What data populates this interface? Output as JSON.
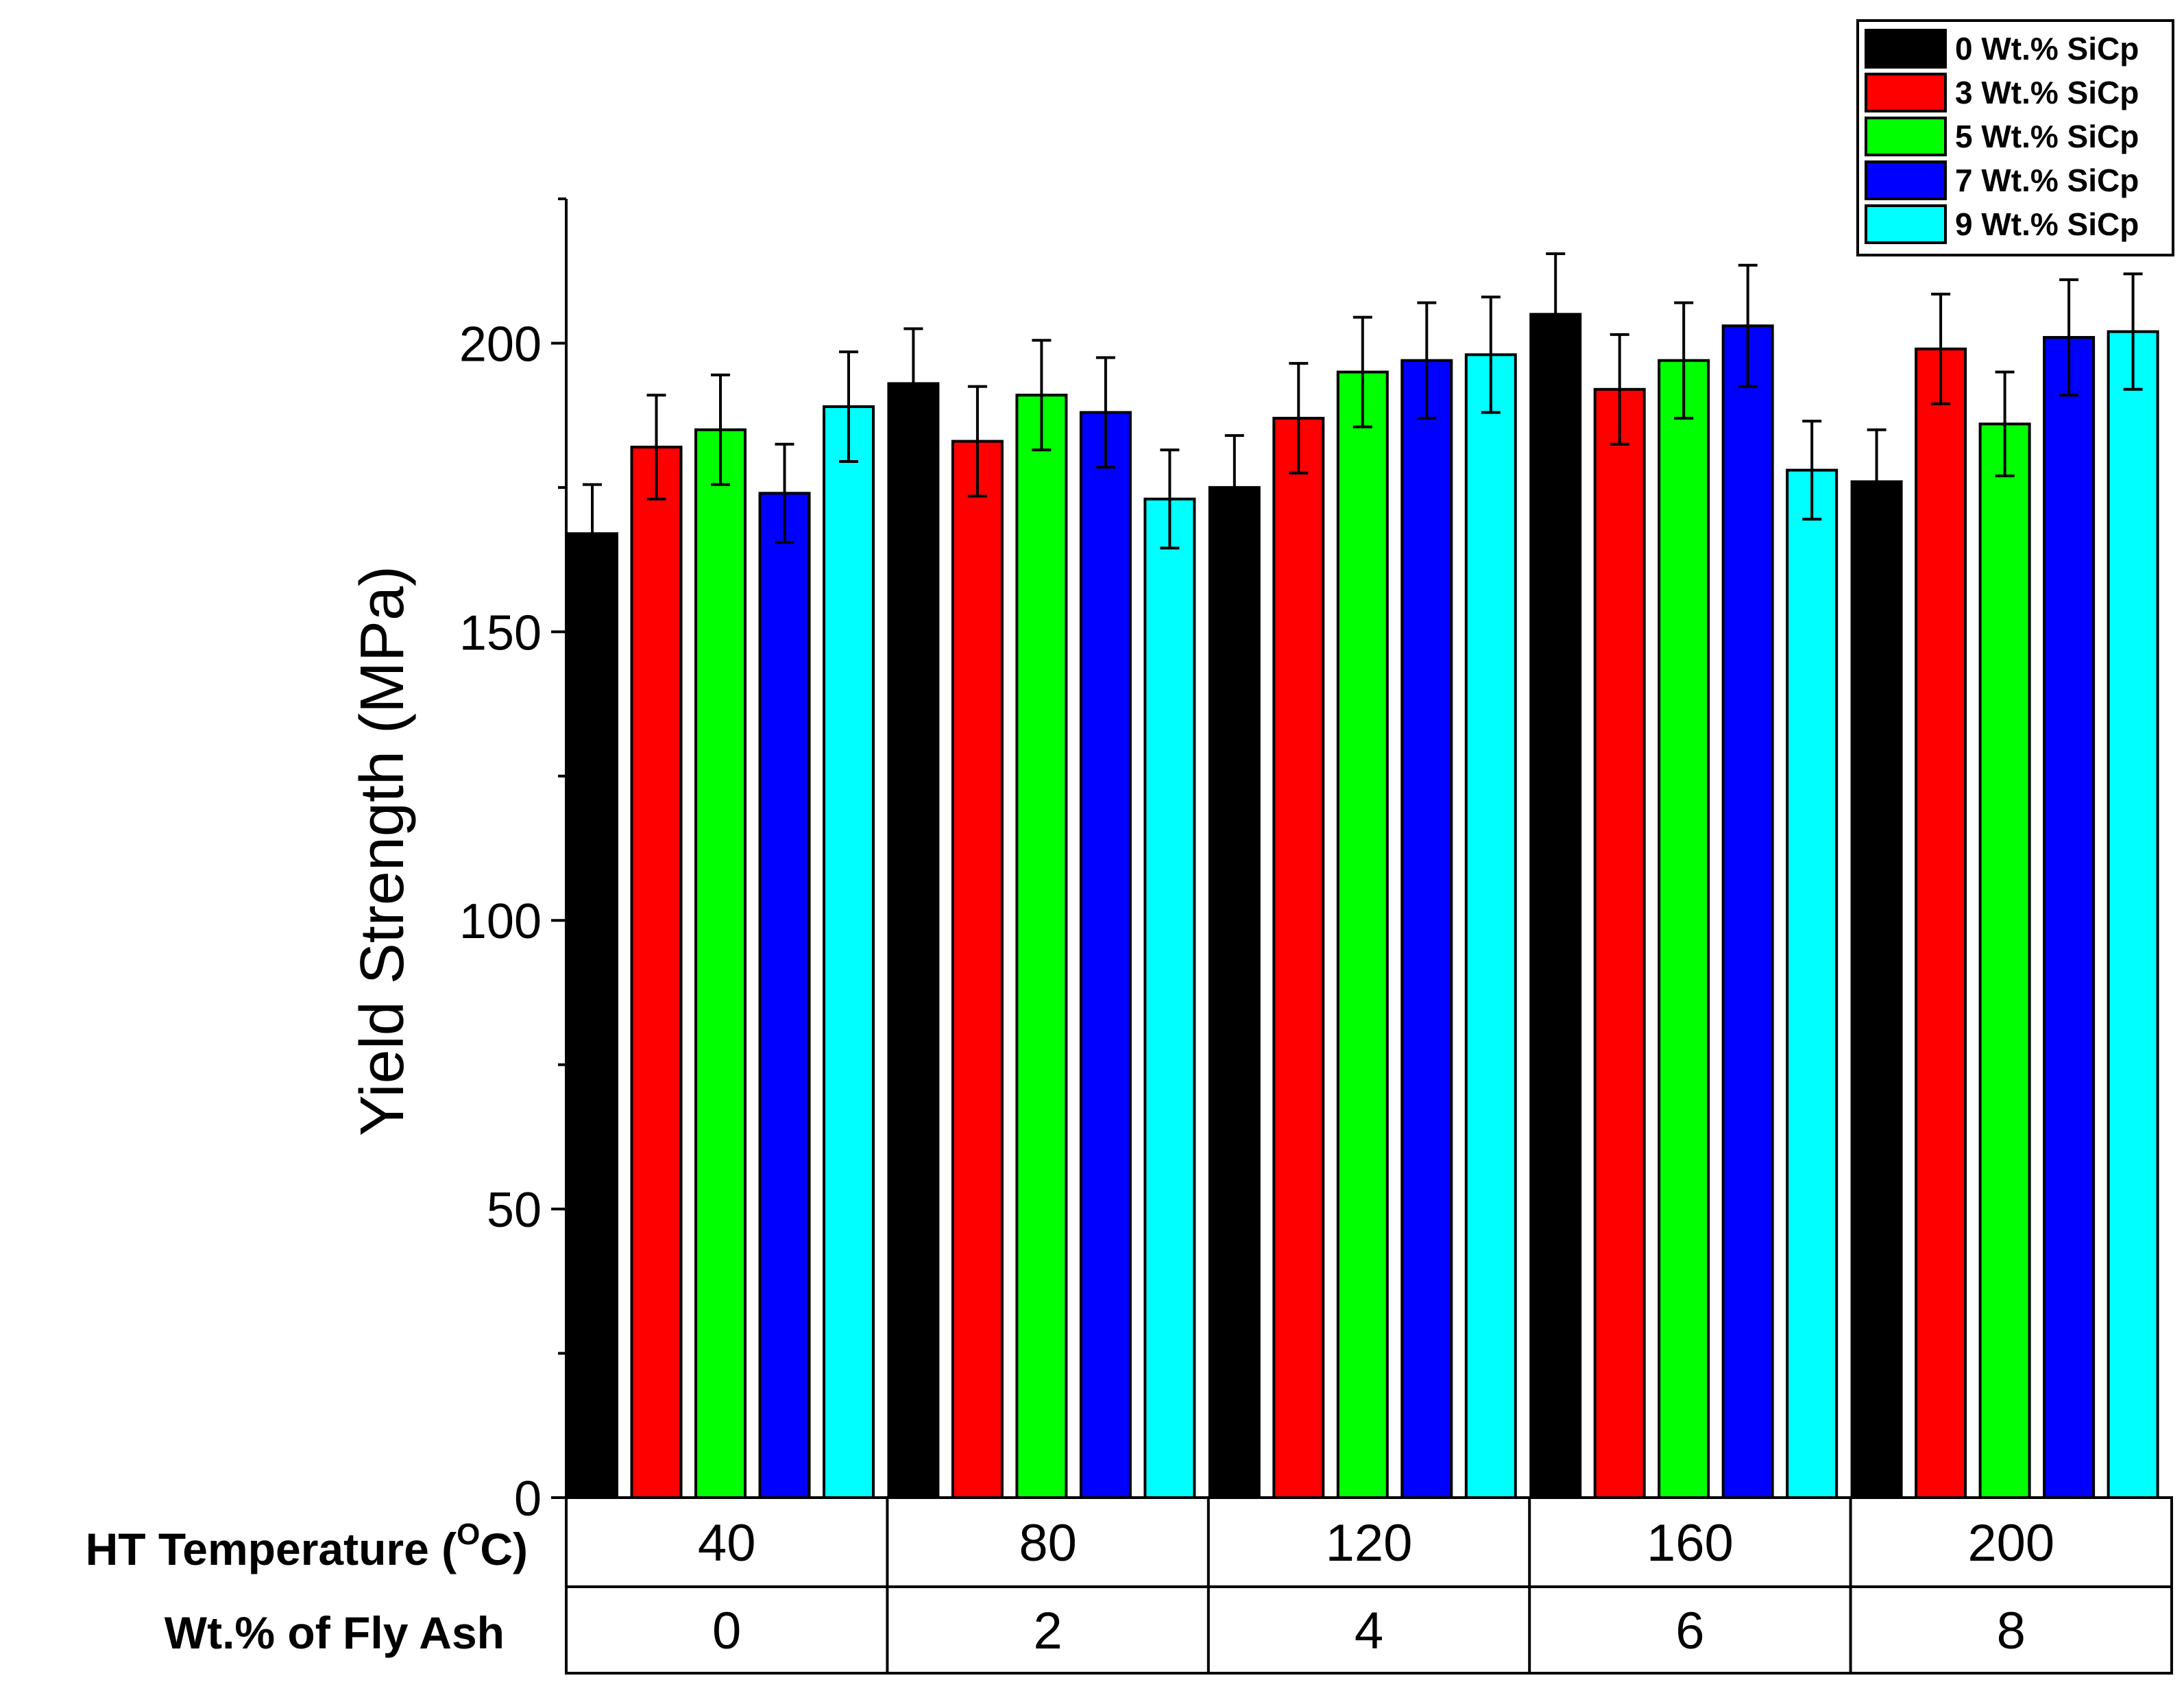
{
  "chart_data": {
    "type": "bar",
    "title": "",
    "ylabel": "Yield Strength (MPa)",
    "ylim": [
      0,
      225
    ],
    "yticks": [
      0,
      50,
      100,
      150,
      200
    ],
    "row_labels": {
      "temperature": {
        "prefix": "HT Temperature (",
        "sup": "O",
        "suffix": "C)"
      },
      "fly_ash": "Wt.% of Fly Ash"
    },
    "categories": [
      "40",
      "80",
      "120",
      "160",
      "200"
    ],
    "fly_ash": [
      "0",
      "2",
      "4",
      "6",
      "8"
    ],
    "series": [
      {
        "name": "0 Wt.% SiCp",
        "color": "#000000",
        "values": [
          167,
          193,
          175,
          205,
          176
        ],
        "errors": [
          8.5,
          9.5,
          9,
          10.5,
          9
        ]
      },
      {
        "name": "3 Wt.% SiCp",
        "color": "#ff0000",
        "values": [
          182,
          183,
          187,
          192,
          199
        ],
        "errors": [
          9,
          9.5,
          9.5,
          9.5,
          9.5
        ]
      },
      {
        "name": "5 Wt.% SiCp",
        "color": "#00ff00",
        "values": [
          185,
          191,
          195,
          197,
          186
        ],
        "errors": [
          9.5,
          9.5,
          9.5,
          10,
          9
        ]
      },
      {
        "name": "7 Wt.% SiCp",
        "color": "#0000ff",
        "values": [
          174,
          188,
          197,
          203,
          201
        ],
        "errors": [
          8.5,
          9.5,
          10,
          10.5,
          10
        ]
      },
      {
        "name": "9 Wt.% SiCp",
        "color": "#00ffff",
        "values": [
          189,
          173,
          198,
          178,
          202
        ],
        "errors": [
          9.5,
          8.5,
          10,
          8.5,
          10
        ]
      }
    ],
    "legend": "top-right"
  }
}
